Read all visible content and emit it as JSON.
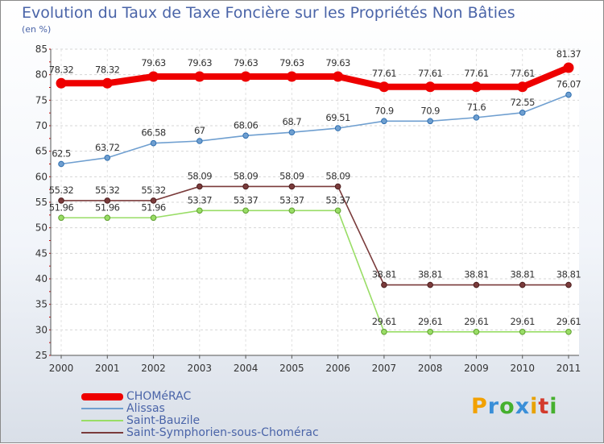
{
  "chart_data": {
    "type": "line",
    "title": "Evolution du Taux de Taxe Foncière sur les Propriétés Non Bâties",
    "ylabel": "(en %)",
    "categories": [
      "2000",
      "2001",
      "2002",
      "2003",
      "2004",
      "2005",
      "2006",
      "2007",
      "2008",
      "2009",
      "2010",
      "2011"
    ],
    "ylim": [
      25,
      85
    ],
    "yticks": [
      25,
      30,
      35,
      40,
      45,
      50,
      55,
      60,
      65,
      70,
      75,
      80,
      85
    ],
    "series": [
      {
        "name": "CHOMéRAC",
        "color": "#ee0000",
        "values": [
          78.32,
          78.32,
          79.63,
          79.63,
          79.63,
          79.63,
          79.63,
          77.61,
          77.61,
          77.61,
          77.61,
          81.37
        ],
        "labels": [
          "78.32",
          "78.32",
          "79.63",
          "79.63",
          "79.63",
          "79.63",
          "79.63",
          "77.61",
          "77.61",
          "77.61",
          "77.61",
          "81.37"
        ]
      },
      {
        "name": "Alissas",
        "color": "#6f9fd0",
        "values": [
          62.5,
          63.72,
          66.58,
          67,
          68.06,
          68.7,
          69.51,
          70.9,
          70.9,
          71.6,
          72.55,
          76.07
        ],
        "labels": [
          "62.5",
          "63.72",
          "66.58",
          "67",
          "68.06",
          "68.7",
          "69.51",
          "70.9",
          "70.9",
          "71.6",
          "72.55",
          "76.07"
        ]
      },
      {
        "name": "Saint-Bauzile",
        "color": "#99dd66",
        "values": [
          51.96,
          51.96,
          51.96,
          53.37,
          53.37,
          53.37,
          53.37,
          29.61,
          29.61,
          29.61,
          29.61,
          29.61
        ],
        "labels": [
          "51.96",
          "51.96",
          "51.96",
          "53.37",
          "53.37",
          "53.37",
          "53.37",
          "29.61",
          "29.61",
          "29.61",
          "29.61",
          "29.61"
        ]
      },
      {
        "name": "Saint-Symphorien-sous-Chomérac",
        "color": "#7a3b3b",
        "values": [
          55.32,
          55.32,
          55.32,
          58.09,
          58.09,
          58.09,
          58.09,
          38.81,
          38.81,
          38.81,
          38.81,
          38.81
        ],
        "labels": [
          "55.32",
          "55.32",
          "55.32",
          "58.09",
          "58.09",
          "58.09",
          "58.09",
          "38.81",
          "38.81",
          "38.81",
          "38.81",
          "38.81"
        ]
      }
    ]
  },
  "logo": {
    "text": "Proxiti",
    "letters": [
      "P",
      "r",
      "o",
      "x",
      "i",
      "t",
      "i"
    ],
    "colors": [
      "#f2a100",
      "#3a8fd8",
      "#45b02e",
      "#3a8fd8",
      "#e8a200",
      "#d33a2c",
      "#45b02e"
    ]
  }
}
